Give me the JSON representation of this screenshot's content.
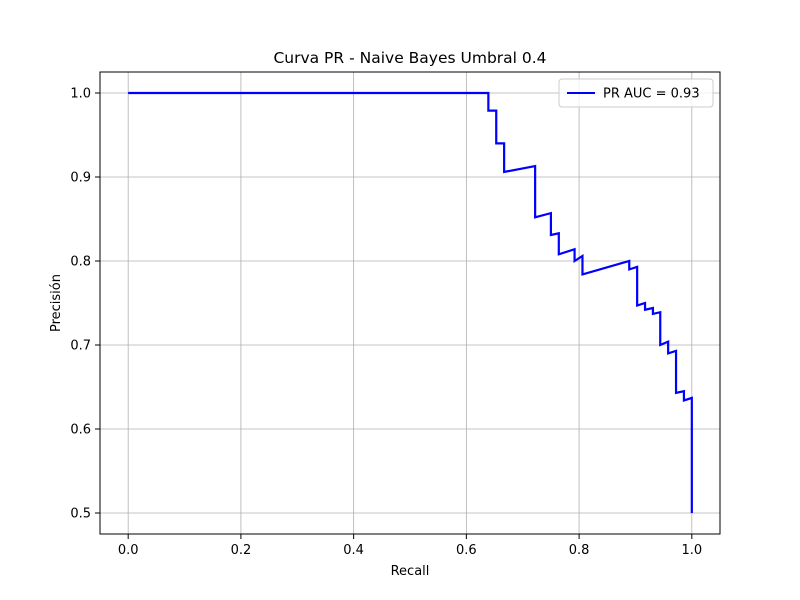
{
  "chart_data": {
    "type": "line",
    "title": "Curva PR - Naive Bayes Umbral 0.4",
    "xlabel": "Recall",
    "ylabel": "Precisión",
    "xlim": [
      -0.05,
      1.05
    ],
    "ylim": [
      0.475,
      1.025
    ],
    "xticks": [
      0.0,
      0.2,
      0.4,
      0.6,
      0.8,
      1.0
    ],
    "xtick_labels": [
      "0.0",
      "0.2",
      "0.4",
      "0.6",
      "0.8",
      "1.0"
    ],
    "yticks": [
      0.5,
      0.6,
      0.7,
      0.8,
      0.9,
      1.0
    ],
    "ytick_labels": [
      "0.5",
      "0.6",
      "0.7",
      "0.8",
      "0.9",
      "1.0"
    ],
    "grid": true,
    "legend_position": "top-right",
    "series": [
      {
        "name": "PR AUC = 0.93",
        "color": "#0000ff",
        "x": [
          0.0,
          0.639,
          0.639,
          0.653,
          0.653,
          0.667,
          0.667,
          0.722,
          0.722,
          0.75,
          0.75,
          0.764,
          0.764,
          0.792,
          0.792,
          0.806,
          0.806,
          0.889,
          0.889,
          0.903,
          0.903,
          0.917,
          0.917,
          0.931,
          0.931,
          0.944,
          0.944,
          0.958,
          0.958,
          0.972,
          0.972,
          0.986,
          0.986,
          1.0,
          1.0
        ],
        "y": [
          1.0,
          1.0,
          0.979,
          0.979,
          0.94,
          0.94,
          0.906,
          0.913,
          0.852,
          0.857,
          0.831,
          0.833,
          0.808,
          0.814,
          0.8,
          0.806,
          0.784,
          0.8,
          0.79,
          0.793,
          0.747,
          0.75,
          0.742,
          0.744,
          0.737,
          0.739,
          0.7,
          0.704,
          0.69,
          0.693,
          0.643,
          0.645,
          0.634,
          0.637,
          0.5
        ]
      }
    ]
  }
}
